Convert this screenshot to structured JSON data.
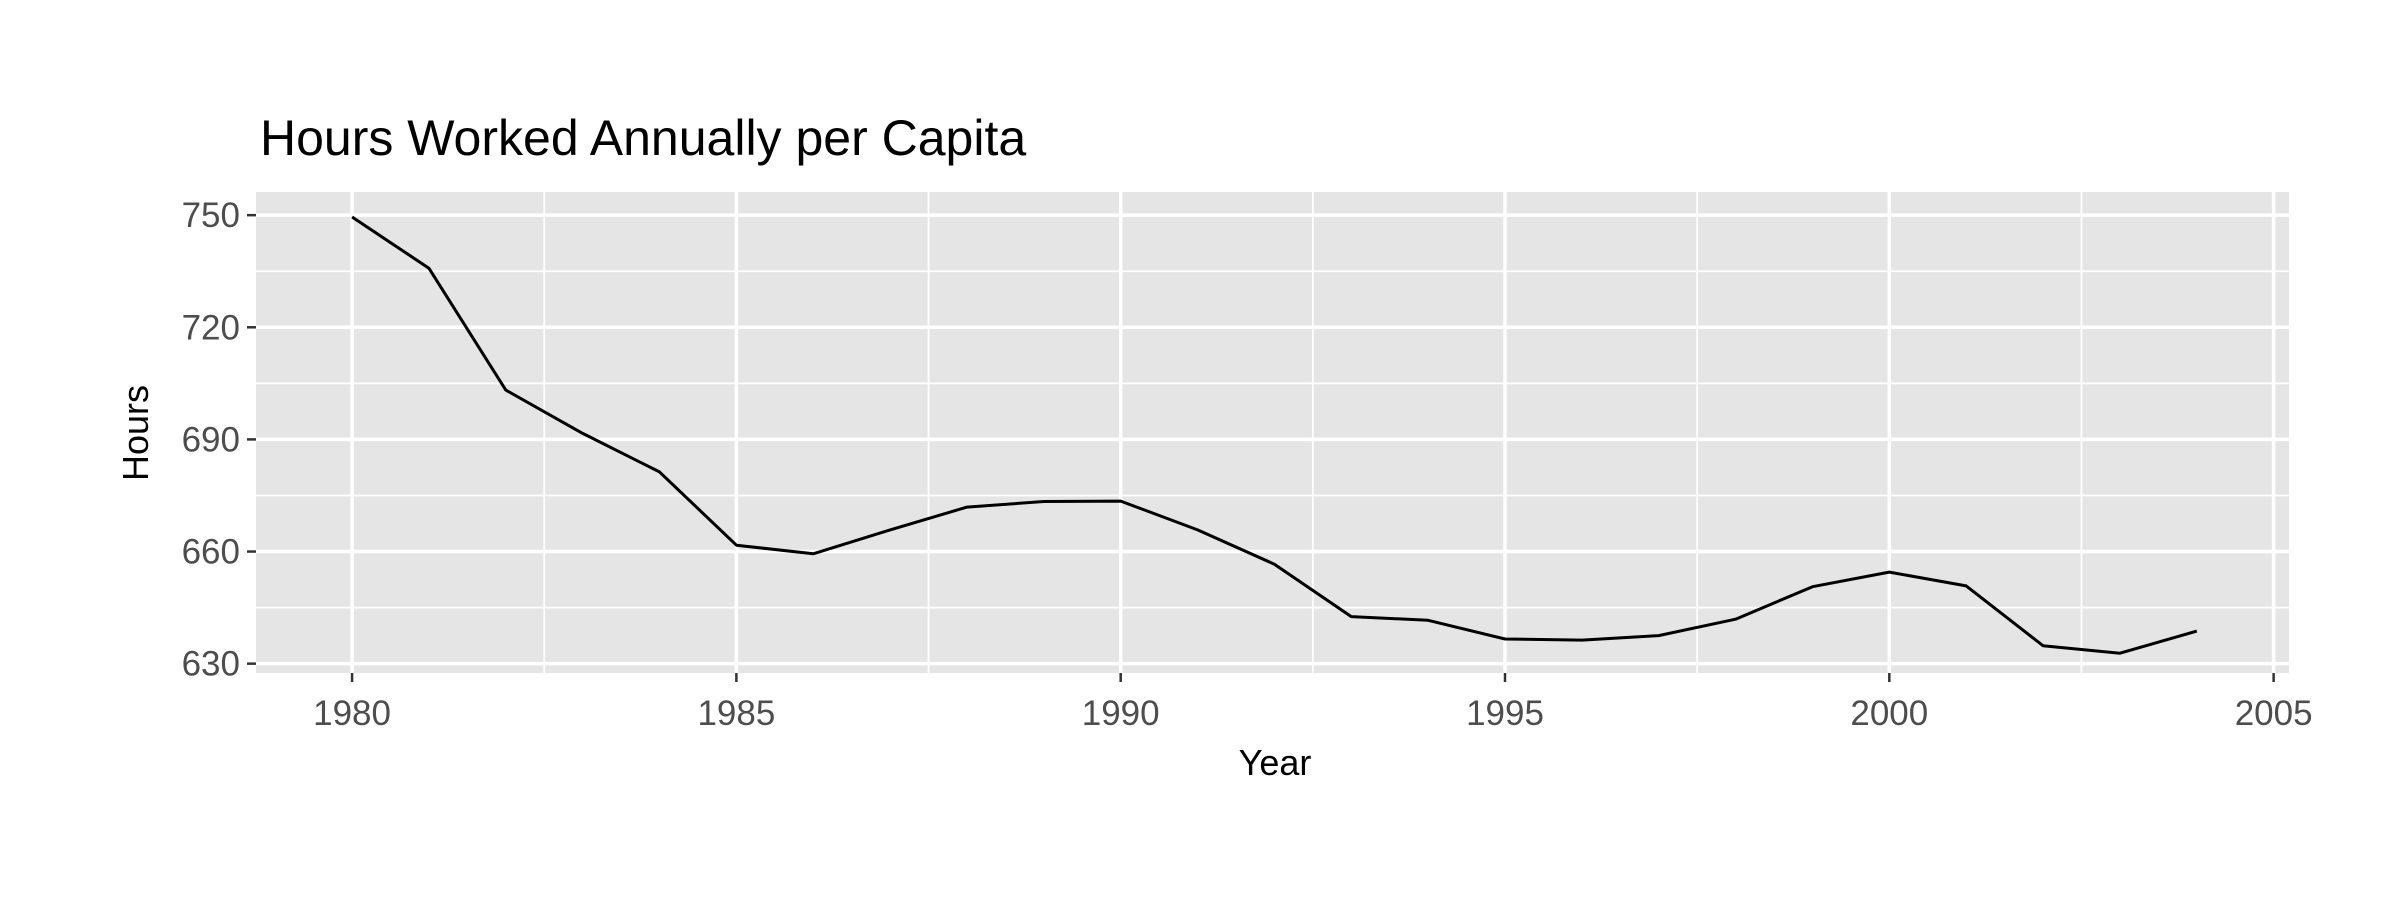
{
  "chart_data": {
    "type": "line",
    "title": "Hours Worked Annually per Capita",
    "xlabel": "Year",
    "ylabel": "Hours",
    "x": [
      1980,
      1981,
      1982,
      1983,
      1984,
      1985,
      1986,
      1987,
      1988,
      1989,
      1990,
      1991,
      1992,
      1993,
      1994,
      1995,
      1996,
      1997,
      1998,
      1999,
      2000,
      2001,
      2002,
      2003,
      2004
    ],
    "series": [
      {
        "values": [
          749.5,
          735.8,
          703.2,
          691.6,
          681.3,
          661.7,
          659.4,
          665.8,
          671.9,
          673.4,
          673.5,
          665.8,
          656.6,
          642.6,
          641.6,
          636.6,
          636.3,
          637.5,
          641.9,
          650.6,
          654.5,
          650.8,
          634.8,
          632.8,
          638.7
        ],
        "color": "#000000"
      }
    ],
    "xlim": [
      1978.75,
      2005.2
    ],
    "ylim": [
      627.5,
      756.2
    ],
    "x_ticks": [
      1980,
      1985,
      1990,
      1995,
      2000,
      2005
    ],
    "x_tick_labels": [
      "1980",
      "1985",
      "1990",
      "1995",
      "2000",
      "2005"
    ],
    "x_minor_ticks": [
      1982.5,
      1987.5,
      1992.5,
      1997.5,
      2002.5
    ],
    "y_ticks": [
      630,
      660,
      690,
      720,
      750
    ],
    "y_tick_labels": [
      "630",
      "660",
      "690",
      "720",
      "750"
    ],
    "y_minor_ticks": [
      645,
      675,
      705,
      735
    ],
    "grid": true,
    "legend": "none",
    "panel_background": "#e5e5e5",
    "grid_color": "#ffffff"
  }
}
